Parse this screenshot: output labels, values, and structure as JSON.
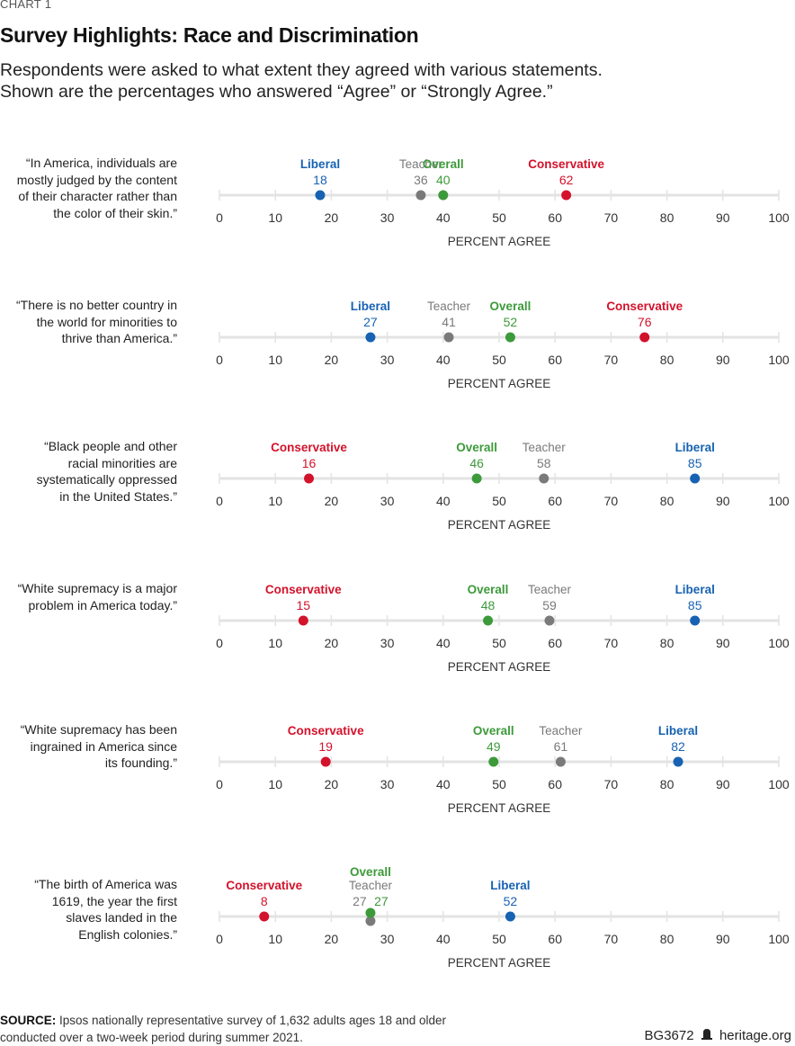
{
  "header": {
    "kicker": "CHART 1",
    "title": "Survey Highlights: Race and Discrimination",
    "subtitle_line1": "Respondents were asked to what extent they agreed with various statements.",
    "subtitle_line2": "Shown are the percentages who answered “Agree” or “Strongly Agree.”"
  },
  "colors": {
    "Liberal": "#1762b3",
    "Teacher": "#7a7a7a",
    "Overall": "#3d9a3a",
    "Conservative": "#d3122b",
    "axis_line": "#e3e3e3"
  },
  "chart_data": {
    "type": "scatter",
    "title": "Survey Highlights: Race and Discrimination",
    "xlabel": "PERCENT AGREE",
    "xlim": [
      0,
      100
    ],
    "ticks": [
      0,
      10,
      20,
      30,
      40,
      50,
      60,
      70,
      80,
      90,
      100
    ],
    "series_names": [
      "Liberal",
      "Teacher",
      "Overall",
      "Conservative"
    ],
    "panels": [
      {
        "statement": [
          "“In America, individuals are",
          "mostly judged by the content",
          "of their character rather than",
          "the color of their skin.”"
        ],
        "values": {
          "Liberal": 18,
          "Teacher": 36,
          "Overall": 40,
          "Conservative": 62
        }
      },
      {
        "statement": [
          "“There is no better country in",
          "the world for minorities to",
          "thrive than America.”"
        ],
        "values": {
          "Liberal": 27,
          "Teacher": 41,
          "Overall": 52,
          "Conservative": 76
        }
      },
      {
        "statement": [
          "“Black people and other",
          "racial minorities are",
          "systematically oppressed",
          "in the United States.”"
        ],
        "values": {
          "Liberal": 85,
          "Teacher": 58,
          "Overall": 46,
          "Conservative": 16
        }
      },
      {
        "statement": [
          "“White supremacy is a major",
          "problem in America today.”"
        ],
        "values": {
          "Liberal": 85,
          "Teacher": 59,
          "Overall": 48,
          "Conservative": 15
        }
      },
      {
        "statement": [
          "“White supremacy has been",
          "ingrained in America since",
          "its founding.”"
        ],
        "values": {
          "Liberal": 82,
          "Teacher": 61,
          "Overall": 49,
          "Conservative": 19
        }
      },
      {
        "statement": [
          "“The birth of America was",
          "1619, the year the first",
          "slaves landed in the",
          "English colonies.”"
        ],
        "values": {
          "Liberal": 52,
          "Teacher": 27,
          "Overall": 27,
          "Conservative": 8
        }
      }
    ]
  },
  "footer": {
    "source_label": "SOURCE:",
    "source_text": " Ipsos nationally representative survey of 1,632 adults ages 18 and older conducted over a two-week period during summer 2021.",
    "report_id": "BG3672",
    "logo_icon": "bell-icon",
    "site": "heritage.org"
  }
}
